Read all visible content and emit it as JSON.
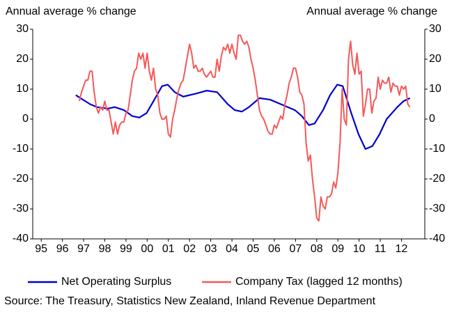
{
  "chart_data": {
    "type": "line",
    "y_label": "Annual average % change",
    "y2_label": "Annual average % change",
    "source": "Source: The Treasury, Statistics New Zealand, Inland Revenue Department",
    "legend": "bottom",
    "xlim": [
      1994.6,
      2013.1
    ],
    "xticks": [
      {
        "value": 1995,
        "label": "95"
      },
      {
        "value": 1996,
        "label": "96"
      },
      {
        "value": 1997,
        "label": "97"
      },
      {
        "value": 1998,
        "label": "98"
      },
      {
        "value": 1999,
        "label": "99"
      },
      {
        "value": 2000,
        "label": "00"
      },
      {
        "value": 2001,
        "label": "01"
      },
      {
        "value": 2002,
        "label": "02"
      },
      {
        "value": 2003,
        "label": "03"
      },
      {
        "value": 2004,
        "label": "04"
      },
      {
        "value": 2005,
        "label": "05"
      },
      {
        "value": 2006,
        "label": "06"
      },
      {
        "value": 2007,
        "label": "07"
      },
      {
        "value": 2008,
        "label": "08"
      },
      {
        "value": 2009,
        "label": "09"
      },
      {
        "value": 2010,
        "label": "10"
      },
      {
        "value": 2011,
        "label": "11"
      },
      {
        "value": 2012,
        "label": "12"
      }
    ],
    "ylim": [
      -40,
      30
    ],
    "yticks": [
      -40,
      -30,
      -20,
      -10,
      0,
      10,
      20,
      30
    ],
    "y2lim": [
      -40,
      30
    ],
    "y2ticks": [
      -40,
      -30,
      -20,
      -10,
      0,
      10,
      20,
      30
    ],
    "series": [
      {
        "name": "Net Operating Surplus",
        "color": "#0000cc",
        "x": [
          1996.63,
          1997.3,
          1997.63,
          1998.13,
          1998.47,
          1998.9,
          1999.3,
          1999.63,
          1999.97,
          2000.3,
          2000.7,
          2000.97,
          2001.3,
          2001.7,
          2002.3,
          2002.8,
          2003.3,
          2003.8,
          2004.13,
          2004.47,
          2004.8,
          2005.3,
          2005.8,
          2006.3,
          2006.97,
          2007.3,
          2007.63,
          2007.9,
          2008.3,
          2008.63,
          2008.97,
          2009.23,
          2009.63,
          2009.97,
          2010.3,
          2010.63,
          2010.97,
          2011.3,
          2011.8,
          2012.1,
          2012.4
        ],
        "values": [
          8,
          5,
          4,
          3.5,
          4,
          3,
          1,
          0.5,
          2,
          6,
          11,
          11.5,
          9,
          7.5,
          8.5,
          9.5,
          9,
          5,
          3,
          2.5,
          4,
          7,
          6.5,
          5,
          3,
          1,
          -2,
          -1.5,
          3,
          8,
          11.5,
          11,
          2,
          -5,
          -10,
          -9,
          -5,
          0,
          4,
          6,
          7
        ]
      },
      {
        "name": "Company Tax (lagged 12 months)",
        "color": "#f55858",
        "axis": "y2",
        "x": [
          1996.8,
          1996.9,
          1997,
          1997.1,
          1997.2,
          1997.3,
          1997.4,
          1997.5,
          1997.6,
          1997.7,
          1997.8,
          1997.9,
          1998,
          1998.1,
          1998.2,
          1998.3,
          1998.4,
          1998.5,
          1998.6,
          1998.7,
          1998.8,
          1998.9,
          1999,
          1999.1,
          1999.2,
          1999.3,
          1999.4,
          1999.5,
          1999.6,
          1999.7,
          1999.8,
          1999.9,
          2000,
          2000.1,
          2000.2,
          2000.3,
          2000.4,
          2000.5,
          2000.6,
          2000.7,
          2000.8,
          2000.9,
          2001,
          2001.1,
          2001.2,
          2001.3,
          2001.4,
          2001.5,
          2001.6,
          2001.7,
          2001.8,
          2001.9,
          2002,
          2002.1,
          2002.2,
          2002.3,
          2002.4,
          2002.5,
          2002.6,
          2002.7,
          2002.8,
          2002.9,
          2003,
          2003.1,
          2003.2,
          2003.3,
          2003.4,
          2003.5,
          2003.6,
          2003.7,
          2003.8,
          2003.9,
          2004,
          2004.1,
          2004.2,
          2004.3,
          2004.4,
          2004.5,
          2004.6,
          2004.7,
          2004.8,
          2004.9,
          2005,
          2005.1,
          2005.2,
          2005.3,
          2005.4,
          2005.5,
          2005.6,
          2005.7,
          2005.8,
          2005.9,
          2006,
          2006.1,
          2006.2,
          2006.3,
          2006.4,
          2006.5,
          2006.6,
          2006.7,
          2006.8,
          2006.9,
          2007,
          2007.1,
          2007.2,
          2007.3,
          2007.4,
          2007.5,
          2007.6,
          2007.7,
          2007.8,
          2007.9,
          2008,
          2008.1,
          2008.2,
          2008.3,
          2008.4,
          2008.5,
          2008.6,
          2008.7,
          2008.8,
          2008.9,
          2009,
          2009.1,
          2009.2,
          2009.3,
          2009.4,
          2009.5,
          2009.6,
          2009.7,
          2009.8,
          2009.9,
          2010,
          2010.1,
          2010.2,
          2010.3,
          2010.4,
          2010.5,
          2010.6,
          2010.7,
          2010.8,
          2010.9,
          2011,
          2011.1,
          2011.2,
          2011.3,
          2011.4,
          2011.5,
          2011.6,
          2011.7,
          2011.8,
          2011.9,
          2012,
          2012.1,
          2012.2,
          2012.3,
          2012.4
        ],
        "values": [
          6,
          9,
          11,
          13,
          13,
          16,
          16,
          9,
          4,
          2,
          4,
          3,
          6,
          3,
          3,
          -1,
          -5,
          -1,
          -5,
          -2,
          -1,
          -1,
          2,
          3,
          8,
          13,
          16,
          17,
          22,
          20,
          22,
          17,
          22,
          16,
          13,
          17,
          10,
          8,
          2,
          0,
          0,
          1,
          -5,
          -6,
          0,
          3,
          7,
          10,
          12,
          13,
          17,
          21,
          25,
          22,
          17,
          18,
          16,
          16,
          17,
          15,
          14,
          15,
          16,
          14,
          14,
          20,
          16,
          21,
          24,
          23,
          25,
          22,
          25,
          22,
          20,
          28,
          28,
          26,
          25,
          26,
          24,
          20,
          17,
          13,
          8,
          3,
          1,
          0,
          -2,
          -4,
          -5,
          -5,
          -2,
          -3,
          -1,
          1,
          0,
          5,
          8,
          12,
          14,
          17,
          17,
          14,
          9,
          8,
          5,
          -8,
          -14,
          -12,
          -20,
          -26,
          -33,
          -34,
          -26,
          -29,
          -30,
          -26,
          -26,
          -25,
          -21,
          -23,
          -18,
          -8,
          10,
          0,
          -2,
          20,
          26,
          18,
          15,
          22,
          15,
          16,
          1,
          5,
          10,
          10,
          2,
          6,
          7,
          14,
          10,
          13,
          12,
          12,
          14,
          9,
          12,
          11,
          11,
          8,
          11,
          10,
          11,
          5,
          4
        ]
      }
    ]
  }
}
